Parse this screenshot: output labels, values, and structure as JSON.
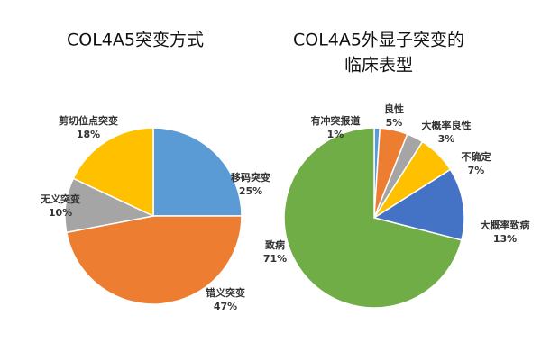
{
  "chart_data": [
    {
      "type": "pie",
      "title": [
        "COL4A5突变方式"
      ],
      "categories": [
        "移码突变",
        "错义突变",
        "无义突变",
        "剪切位点突变"
      ],
      "values": [
        25,
        47,
        10,
        18
      ],
      "value_labels": [
        "25%",
        "47%",
        "10%",
        "18%"
      ],
      "colors": [
        "#5b9bd5",
        "#ed7d31",
        "#a5a5a5",
        "#ffc000"
      ]
    },
    {
      "type": "pie",
      "title": [
        "COL4A5外显子突变的",
        "临床表型"
      ],
      "categories": [
        "有冲突报道",
        "良性",
        "大概率良性",
        "不确定",
        "大概率致病",
        "致病"
      ],
      "values": [
        1,
        5,
        3,
        7,
        13,
        71
      ],
      "value_labels": [
        "1%",
        "5%",
        "3%",
        "7%",
        "13%",
        "71%"
      ],
      "colors": [
        "#5b9bd5",
        "#ed7d31",
        "#a5a5a5",
        "#ffc000",
        "#4472c4",
        "#70ad47"
      ]
    }
  ]
}
